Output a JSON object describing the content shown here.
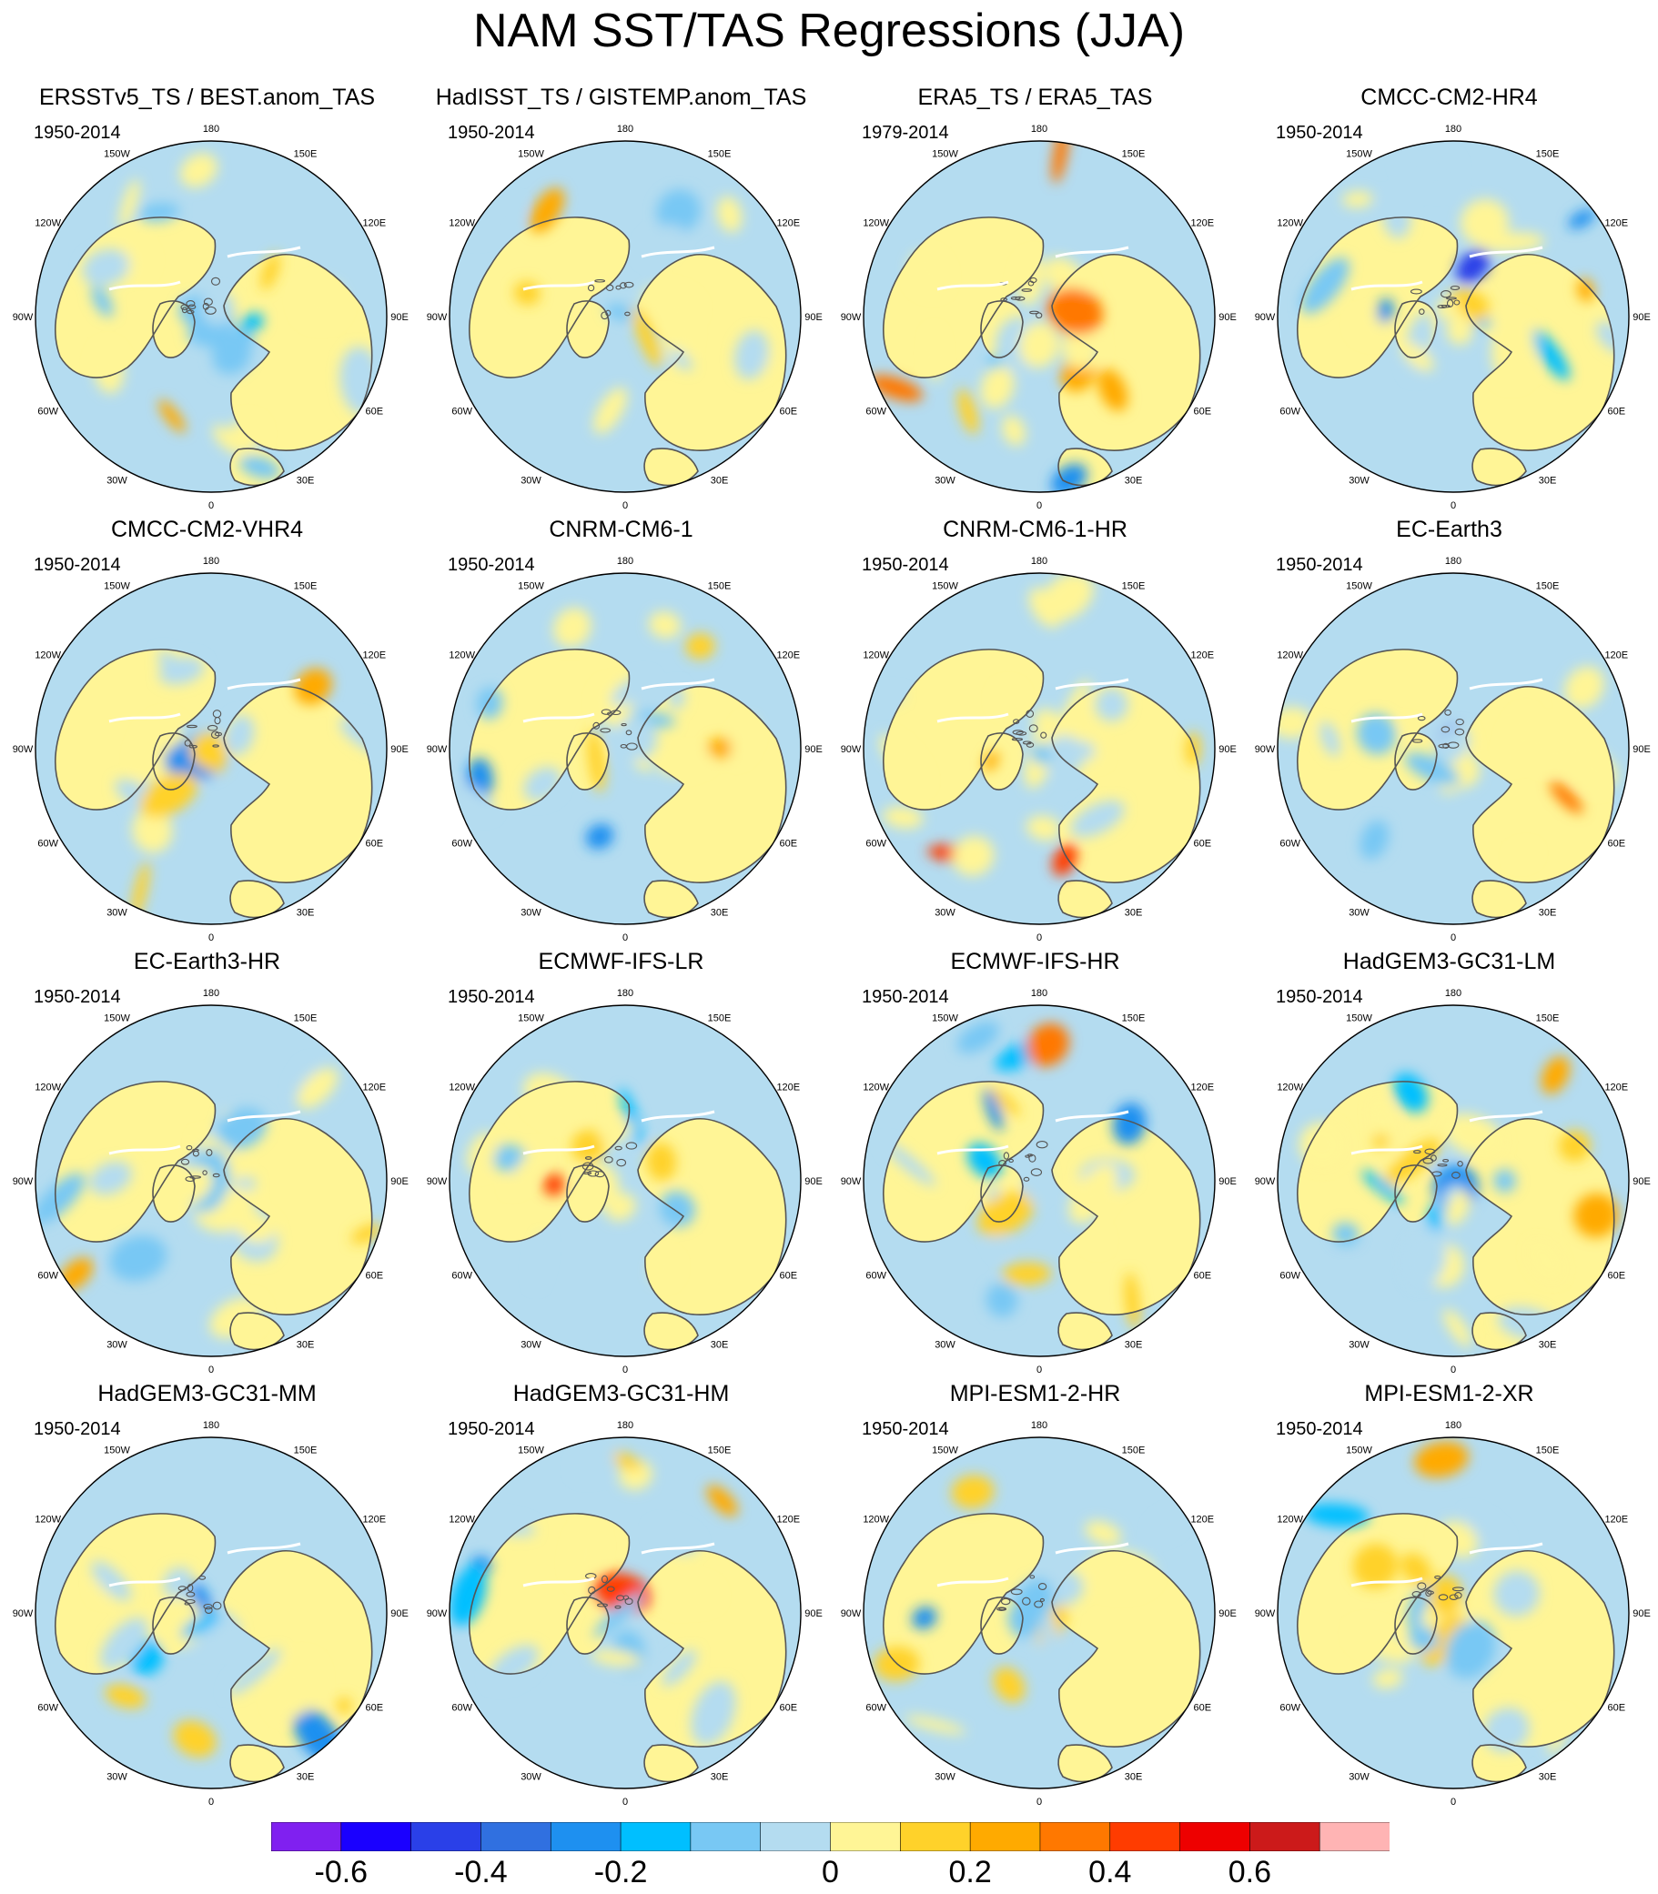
{
  "title": "NAM SST/TAS Regressions (JJA)",
  "longitude_labels": [
    "180",
    "150E",
    "120E",
    "90E",
    "60E",
    "30E",
    "0",
    "30W",
    "60W",
    "90W",
    "120W",
    "150W"
  ],
  "colors": {
    "ocean_light_blue": "#b4dcf0",
    "land_light_yellow": "#fff596",
    "coast": "#555555",
    "missing": "#ffffff"
  },
  "panels": [
    {
      "title": "ERSSTv5_TS / BEST.anom_TAS",
      "period": "1950-2014"
    },
    {
      "title": "HadISST_TS / GISTEMP.anom_TAS",
      "period": "1950-2014"
    },
    {
      "title": "ERA5_TS / ERA5_TAS",
      "period": "1979-2014"
    },
    {
      "title": "CMCC-CM2-HR4",
      "period": "1950-2014"
    },
    {
      "title": "CMCC-CM2-VHR4",
      "period": "1950-2014"
    },
    {
      "title": "CNRM-CM6-1",
      "period": "1950-2014"
    },
    {
      "title": "CNRM-CM6-1-HR",
      "period": "1950-2014"
    },
    {
      "title": "EC-Earth3",
      "period": "1950-2014"
    },
    {
      "title": "EC-Earth3-HR",
      "period": "1950-2014"
    },
    {
      "title": "ECMWF-IFS-LR",
      "period": "1950-2014"
    },
    {
      "title": "ECMWF-IFS-HR",
      "period": "1950-2014"
    },
    {
      "title": "HadGEM3-GC31-LM",
      "period": "1950-2014"
    },
    {
      "title": "HadGEM3-GC31-MM",
      "period": "1950-2014"
    },
    {
      "title": "HadGEM3-GC31-HM",
      "period": "1950-2014"
    },
    {
      "title": "MPI-ESM1-2-HR",
      "period": "1950-2014"
    },
    {
      "title": "MPI-ESM1-2-XR",
      "period": "1950-2014"
    }
  ],
  "colorbar": {
    "colors": [
      "#8020f0",
      "#1a00ff",
      "#2a40e8",
      "#3070e0",
      "#1e90f0",
      "#00bfff",
      "#78c8f4",
      "#b4dcf0",
      "#fff596",
      "#ffd22a",
      "#ffaa00",
      "#ff7800",
      "#ff3c00",
      "#ee0000",
      "#cc1a1a",
      "#ffb4b4"
    ],
    "labels": [
      {
        "text": "-0.6",
        "index": 1
      },
      {
        "text": "-0.4",
        "index": 3
      },
      {
        "text": "-0.2",
        "index": 5
      },
      {
        "text": "0",
        "index": 8
      },
      {
        "text": "0.2",
        "index": 10
      },
      {
        "text": "0.4",
        "index": 12
      },
      {
        "text": "0.6",
        "index": 14
      }
    ]
  }
}
